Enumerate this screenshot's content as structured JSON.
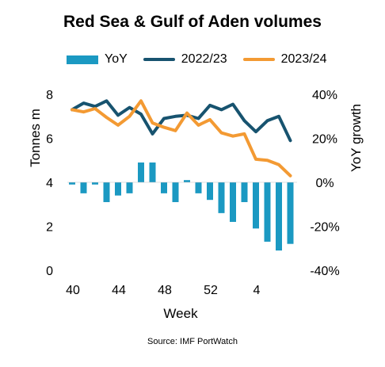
{
  "chart_data": {
    "type": "bar+line",
    "title": "Red Sea & Gulf of Aden volumes",
    "xlabel": "Week",
    "ylabel_left": "Tonnes m",
    "ylabel_right": "YoY growth",
    "ylim_left": [
      0,
      8
    ],
    "ylim_right": [
      -40,
      40
    ],
    "y_ticks_left": [
      "0",
      "2",
      "4",
      "6",
      "8"
    ],
    "y_ticks_right": [
      "-40%",
      "-20%",
      "0%",
      "20%",
      "40%"
    ],
    "x_ticks": [
      {
        "label": "40",
        "week_index": 0
      },
      {
        "label": "44",
        "week_index": 4
      },
      {
        "label": "48",
        "week_index": 8
      },
      {
        "label": "52",
        "week_index": 12
      },
      {
        "label": "4",
        "week_index": 16
      }
    ],
    "weeks": [
      "40",
      "41",
      "42",
      "43",
      "44",
      "45",
      "46",
      "47",
      "48",
      "49",
      "50",
      "51",
      "52",
      "1",
      "2",
      "3",
      "4",
      "5",
      "6",
      "7"
    ],
    "series": [
      {
        "name": "YoY",
        "kind": "bar",
        "axis": "right",
        "color": "#1b99c2",
        "values": [
          -1,
          -5,
          -1,
          -9,
          -6,
          -5,
          9,
          9,
          -5,
          -9,
          1,
          -5,
          -8,
          -14,
          -18,
          -9,
          -21,
          -27,
          -31,
          -28
        ]
      },
      {
        "name": "2022/23",
        "kind": "line",
        "axis": "left",
        "color": "#17536f",
        "values": [
          7.3,
          7.6,
          7.45,
          7.7,
          7.05,
          7.4,
          7.1,
          6.2,
          6.9,
          7.0,
          7.05,
          6.9,
          7.5,
          7.3,
          7.55,
          6.8,
          6.3,
          6.8,
          7.0,
          5.9
        ]
      },
      {
        "name": "2023/24",
        "kind": "line",
        "axis": "left",
        "color": "#f39a33",
        "values": [
          7.3,
          7.2,
          7.35,
          6.95,
          6.6,
          7.0,
          7.7,
          6.7,
          6.5,
          6.35,
          7.15,
          6.6,
          6.85,
          6.25,
          6.1,
          6.2,
          5.05,
          5.0,
          4.8,
          4.3
        ]
      }
    ],
    "legend_position": "top",
    "grid": false
  },
  "source": "Source: IMF PortWatch"
}
